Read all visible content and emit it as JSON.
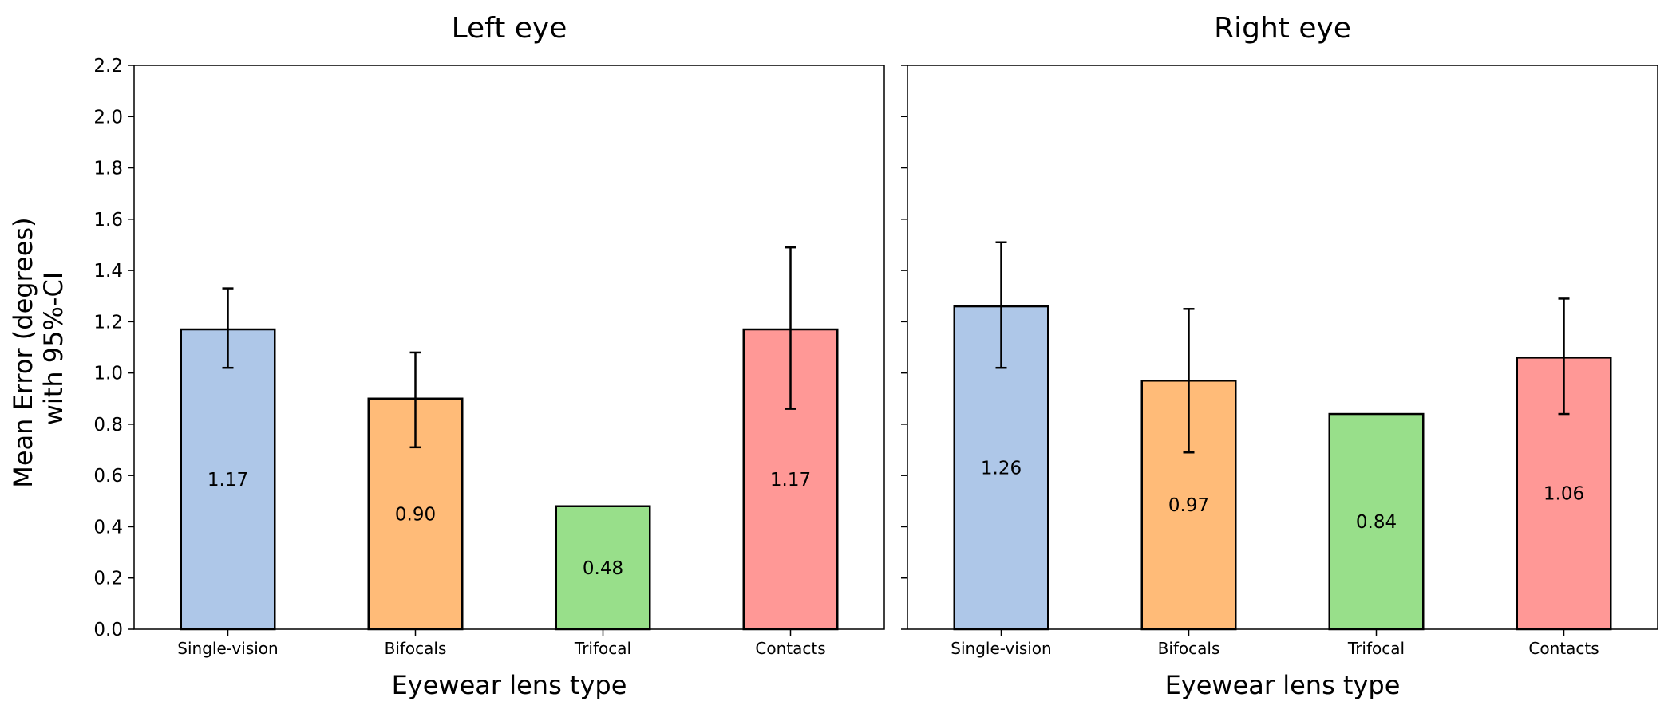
{
  "figure": {
    "ylabel_line1": "Mean Error (degrees)",
    "ylabel_line2": "with 95%-CI"
  },
  "chart_data": [
    {
      "type": "bar",
      "title": "Left eye",
      "xlabel": "Eyewear lens type",
      "ylabel": "Mean Error (degrees) with 95%-CI",
      "categories": [
        "Single-vision",
        "Bifocals",
        "Trifocal",
        "Contacts"
      ],
      "values": [
        1.17,
        0.9,
        0.48,
        1.17
      ],
      "value_labels": [
        "1.17",
        "0.90",
        "0.48",
        "1.17"
      ],
      "ci_low": [
        1.02,
        0.71,
        null,
        0.86
      ],
      "ci_high": [
        1.33,
        1.08,
        null,
        1.49
      ],
      "colors": [
        "#aec7e8",
        "#ffbb78",
        "#98df8a",
        "#ff9896"
      ],
      "ylim": [
        0,
        2.2
      ],
      "yticks": [
        0.0,
        0.2,
        0.4,
        0.6,
        0.8,
        1.0,
        1.2,
        1.4,
        1.6,
        1.8,
        2.0,
        2.2
      ],
      "ytick_labels": [
        "0.0",
        "0.2",
        "0.4",
        "0.6",
        "0.8",
        "1.0",
        "1.2",
        "1.4",
        "1.6",
        "1.8",
        "2.0",
        "2.2"
      ],
      "grid": false
    },
    {
      "type": "bar",
      "title": "Right eye",
      "xlabel": "Eyewear lens type",
      "categories": [
        "Single-vision",
        "Bifocals",
        "Trifocal",
        "Contacts"
      ],
      "values": [
        1.26,
        0.97,
        0.84,
        1.06
      ],
      "value_labels": [
        "1.26",
        "0.97",
        "0.84",
        "1.06"
      ],
      "ci_low": [
        1.02,
        0.69,
        null,
        0.84
      ],
      "ci_high": [
        1.51,
        1.25,
        null,
        1.29
      ],
      "colors": [
        "#aec7e8",
        "#ffbb78",
        "#98df8a",
        "#ff9896"
      ],
      "ylim": [
        0,
        2.2
      ],
      "yticks": [
        0.0,
        0.2,
        0.4,
        0.6,
        0.8,
        1.0,
        1.2,
        1.4,
        1.6,
        1.8,
        2.0,
        2.2
      ],
      "grid": false
    }
  ]
}
